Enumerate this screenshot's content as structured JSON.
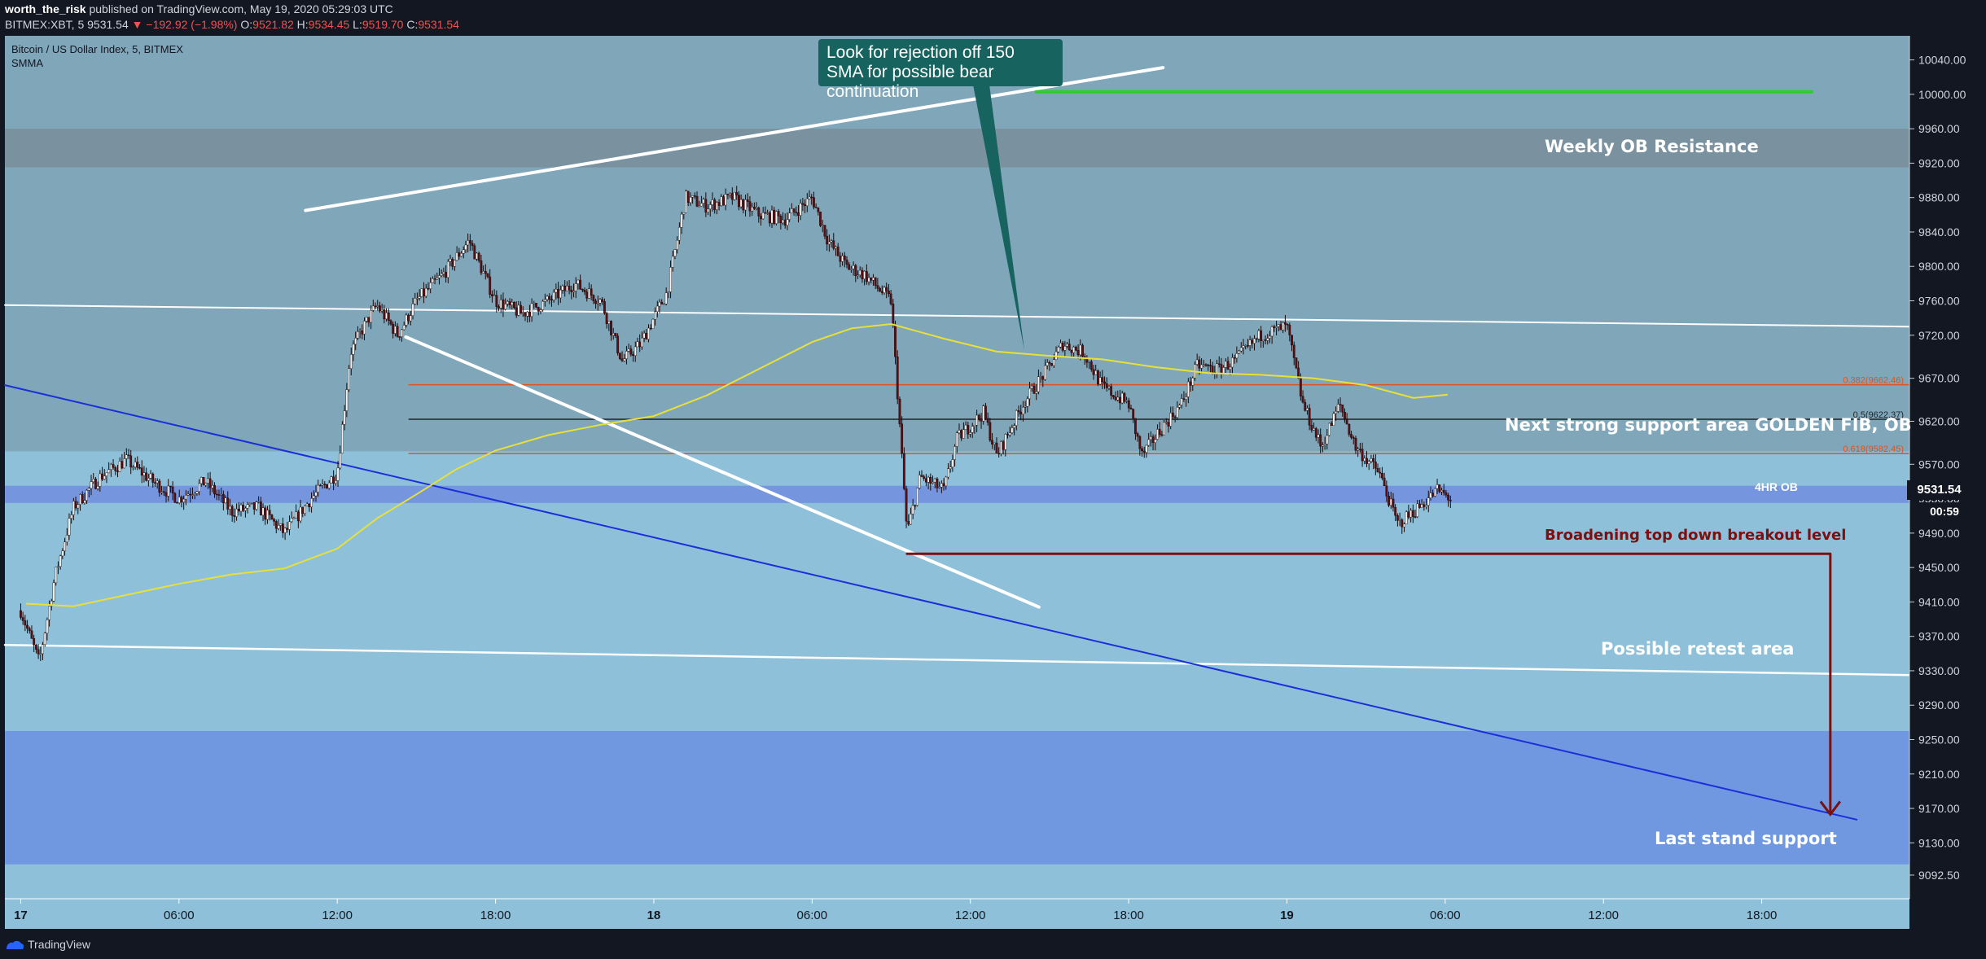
{
  "header": {
    "author": "worth_the_risk",
    "published": "published on TradingView.com, May 19, 2020 05:29:03 UTC",
    "symbol": "BITMEX:XBT, 5",
    "last": "9531.54",
    "change": "−192.92 (−1.98%)",
    "open_label": "O:",
    "open": "9521.82",
    "high_label": "H:",
    "high": "9534.45",
    "low_label": "L:",
    "low": "9519.70",
    "close_label": "C:",
    "close": "9531.54"
  },
  "legend": {
    "title": "Bitcoin / US Dollar Index, 5, BITMEX",
    "indicator": "SMMA"
  },
  "callout": {
    "text": "Look for rejection off 150 SMA for possible bear continuation"
  },
  "annotations": {
    "weekly": "Weekly OB Resistance",
    "golden": "Next strong support area GOLDEN FIB, OB",
    "ob4": "4HR OB",
    "broadening": "Broadening top down breakout level",
    "retest": "Possible retest area",
    "last": "Last stand support"
  },
  "price_tag": {
    "price": "9531.54",
    "countdown": "00:59"
  },
  "footer": {
    "brand": "TradingView"
  },
  "chart_data": {
    "type": "candlestick",
    "ylim": [
      9065,
      10068
    ],
    "y_ticks": [
      10040,
      10000,
      9960,
      9920,
      9880,
      9840,
      9800,
      9760,
      9720,
      9670,
      9620,
      9570,
      9530,
      9490,
      9450,
      9410,
      9370,
      9330,
      9290,
      9250,
      9210,
      9170,
      9130,
      9092.5
    ],
    "y_tick_labels": [
      "10040.00",
      "10000.00",
      "9960.00",
      "9920.00",
      "9880.00",
      "9840.00",
      "9800.00",
      "9760.00",
      "9720.00",
      "9670.00",
      "9620.00",
      "9570.00",
      "9530.00",
      "9490.00",
      "9450.00",
      "9410.00",
      "9370.00",
      "9330.00",
      "9290.00",
      "9250.00",
      "9210.00",
      "9170.00",
      "9130.00",
      "9092.50"
    ],
    "x_ticks": [
      {
        "label": "17",
        "t": 0,
        "bold": true
      },
      {
        "label": "06:00",
        "t": 6,
        "bold": false
      },
      {
        "label": "12:00",
        "t": 12,
        "bold": false
      },
      {
        "label": "18:00",
        "t": 18,
        "bold": false
      },
      {
        "label": "18",
        "t": 24,
        "bold": true
      },
      {
        "label": "06:00",
        "t": 30,
        "bold": false
      },
      {
        "label": "12:00",
        "t": 36,
        "bold": false
      },
      {
        "label": "18:00",
        "t": 42,
        "bold": false
      },
      {
        "label": "19",
        "t": 48,
        "bold": true
      },
      {
        "label": "06:00",
        "t": 54,
        "bold": false
      },
      {
        "label": "12:00",
        "t": 60,
        "bold": false
      },
      {
        "label": "18:00",
        "t": 66,
        "bold": false
      }
    ],
    "xlim": [
      -0.6,
      71.6
    ],
    "zones": [
      {
        "from": 9960,
        "to": 9915,
        "color": "#7a929f"
      },
      {
        "from": 10068,
        "to": 9585,
        "color": "#80a6b9"
      },
      {
        "from": 9585,
        "to": 9065,
        "color": "#8ec1d9"
      },
      {
        "from": 9545,
        "to": 9525,
        "color": "#7596df"
      },
      {
        "from": 9260,
        "to": 9105,
        "color": "#7098e1"
      }
    ],
    "fib_levels": [
      {
        "label": "0.382(9662.46)",
        "value": 9662.46,
        "color": "#e0521e"
      },
      {
        "label": "0.5(9622.37)",
        "value": 9622.37,
        "color": "#1f2328"
      },
      {
        "label": "0.618(9582.45)",
        "value": 9582.45,
        "color": "#e0521e"
      }
    ],
    "fib_t_range": [
      14.7,
      71.6
    ],
    "lines": [
      {
        "name": "upper-trendline",
        "color": "#ffffff",
        "width": 4,
        "points": [
          [
            10.8,
            9865
          ],
          [
            43.3,
            10031
          ]
        ]
      },
      {
        "name": "upper-channel",
        "color": "#ffffff",
        "width": 2,
        "points": [
          [
            -0.6,
            9755
          ],
          [
            71.6,
            9730
          ]
        ]
      },
      {
        "name": "lower-channel",
        "color": "#ffffff",
        "width": 2.5,
        "points": [
          [
            -0.6,
            9360
          ],
          [
            71.6,
            9325
          ]
        ]
      },
      {
        "name": "falling-wedge",
        "color": "#ffffff",
        "width": 4,
        "points": [
          [
            14.6,
            9718
          ],
          [
            38.6,
            9404
          ]
        ]
      },
      {
        "name": "blue-trendline",
        "color": "#1b2fd8",
        "width": 2,
        "points": [
          [
            -0.6,
            9662
          ],
          [
            69.6,
            9157
          ]
        ]
      },
      {
        "name": "green-level",
        "color": "#2ecc2e",
        "width": 4,
        "points": [
          [
            38.5,
            10003
          ],
          [
            67.9,
            10003
          ]
        ]
      },
      {
        "name": "breakout-level",
        "color": "#7a1010",
        "width": 3,
        "points": [
          [
            33.6,
            9466
          ],
          [
            68.6,
            9466
          ]
        ]
      }
    ],
    "arrow": {
      "t": 68.6,
      "from": 9466,
      "to": 9163,
      "color": "#7a1010"
    },
    "smma": [
      [
        0.2,
        9408
      ],
      [
        2,
        9405
      ],
      [
        4,
        9418
      ],
      [
        6,
        9431
      ],
      [
        8,
        9442
      ],
      [
        10,
        9449
      ],
      [
        12,
        9472
      ],
      [
        13.5,
        9507
      ],
      [
        15,
        9535
      ],
      [
        16.5,
        9564
      ],
      [
        18,
        9586
      ],
      [
        20,
        9604
      ],
      [
        22,
        9616
      ],
      [
        24,
        9626
      ],
      [
        26,
        9650
      ],
      [
        28,
        9681
      ],
      [
        30,
        9712
      ],
      [
        31.5,
        9728
      ],
      [
        33,
        9733
      ],
      [
        35,
        9716
      ],
      [
        37,
        9701
      ],
      [
        39,
        9696
      ],
      [
        41,
        9692
      ],
      [
        43,
        9683
      ],
      [
        45,
        9676
      ],
      [
        47,
        9674
      ],
      [
        49,
        9670
      ],
      [
        51,
        9662
      ],
      [
        52.8,
        9647
      ],
      [
        54.1,
        9651
      ]
    ],
    "candle_path": [
      [
        0,
        9400
      ],
      [
        0.7,
        9340
      ],
      [
        1.3,
        9440
      ],
      [
        2,
        9520
      ],
      [
        3,
        9555
      ],
      [
        4,
        9575
      ],
      [
        5,
        9550
      ],
      [
        6,
        9530
      ],
      [
        7,
        9550
      ],
      [
        8,
        9515
      ],
      [
        9,
        9520
      ],
      [
        10,
        9490
      ],
      [
        11,
        9530
      ],
      [
        12,
        9560
      ],
      [
        12.5,
        9700
      ],
      [
        13,
        9730
      ],
      [
        13.5,
        9755
      ],
      [
        14.3,
        9720
      ],
      [
        15,
        9760
      ],
      [
        16,
        9790
      ],
      [
        17,
        9830
      ],
      [
        18,
        9760
      ],
      [
        19,
        9745
      ],
      [
        20,
        9760
      ],
      [
        21,
        9780
      ],
      [
        22,
        9760
      ],
      [
        22.8,
        9690
      ],
      [
        23.5,
        9710
      ],
      [
        24.5,
        9770
      ],
      [
        25.2,
        9880
      ],
      [
        26,
        9870
      ],
      [
        27,
        9880
      ],
      [
        28,
        9860
      ],
      [
        29,
        9855
      ],
      [
        30,
        9880
      ],
      [
        30.6,
        9830
      ],
      [
        31.3,
        9800
      ],
      [
        32,
        9790
      ],
      [
        33,
        9760
      ],
      [
        33.6,
        9490
      ],
      [
        34.1,
        9555
      ],
      [
        35,
        9540
      ],
      [
        35.5,
        9600
      ],
      [
        36.5,
        9630
      ],
      [
        37,
        9580
      ],
      [
        38,
        9640
      ],
      [
        38.9,
        9680
      ],
      [
        39.5,
        9710
      ],
      [
        40.3,
        9700
      ],
      [
        41,
        9660
      ],
      [
        42,
        9640
      ],
      [
        42.5,
        9580
      ],
      [
        43.2,
        9610
      ],
      [
        44,
        9640
      ],
      [
        44.6,
        9685
      ],
      [
        45.4,
        9680
      ],
      [
        46,
        9690
      ],
      [
        47,
        9720
      ],
      [
        48,
        9730
      ],
      [
        48.6,
        9640
      ],
      [
        49.3,
        9590
      ],
      [
        50,
        9640
      ],
      [
        50.6,
        9590
      ],
      [
        51.5,
        9560
      ],
      [
        52.2,
        9500
      ],
      [
        53,
        9520
      ],
      [
        53.7,
        9540
      ],
      [
        54.2,
        9530
      ]
    ],
    "candle_t_range": [
      0,
      54.2
    ],
    "candle_count": 650
  }
}
